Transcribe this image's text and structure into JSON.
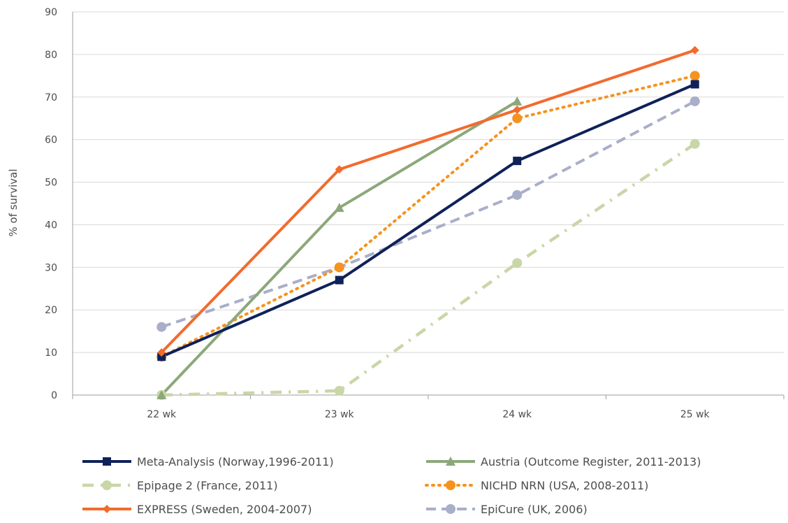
{
  "chart_data": {
    "type": "line",
    "title": "",
    "xlabel": "",
    "ylabel": "% of survival",
    "ylim": [
      0,
      90
    ],
    "yticks": [
      "0",
      "10",
      "20",
      "30",
      "40",
      "50",
      "60",
      "70",
      "80",
      "90"
    ],
    "categories": [
      "22 wk",
      "23 wk",
      "24 wk",
      "25 wk"
    ],
    "grid": "horizontal",
    "legend": "bottom",
    "series": [
      {
        "name": "Meta-Analysis (Norway,1996-2011)",
        "values": [
          9,
          27,
          55,
          73
        ],
        "color": "#0f2159",
        "dash": "solid",
        "marker": "square"
      },
      {
        "name": "Austria (Outcome Register, 2011-2013)",
        "values": [
          0,
          44,
          69,
          null
        ],
        "color": "#8ca87a",
        "dash": "solid",
        "marker": "triangle"
      },
      {
        "name": "Epipage 2 (France, 2011)",
        "values": [
          0,
          1,
          31,
          59
        ],
        "color": "#c9d6a7",
        "dash": "dash-dot",
        "marker": "circle"
      },
      {
        "name": "NICHD NRN (USA, 2008-2011)",
        "values": [
          9,
          30,
          65,
          75
        ],
        "color": "#f6921e",
        "dash": "dotted",
        "marker": "circle"
      },
      {
        "name": "EXPRESS (Sweden, 2004-2007)",
        "values": [
          10,
          53,
          67,
          81
        ],
        "color": "#f26b2d",
        "dash": "solid",
        "marker": "diamond"
      },
      {
        "name": "EpiCure (UK, 2006)",
        "values": [
          16,
          30,
          47,
          69
        ],
        "color": "#a9aec9",
        "dash": "dashed",
        "marker": "circle"
      }
    ]
  }
}
